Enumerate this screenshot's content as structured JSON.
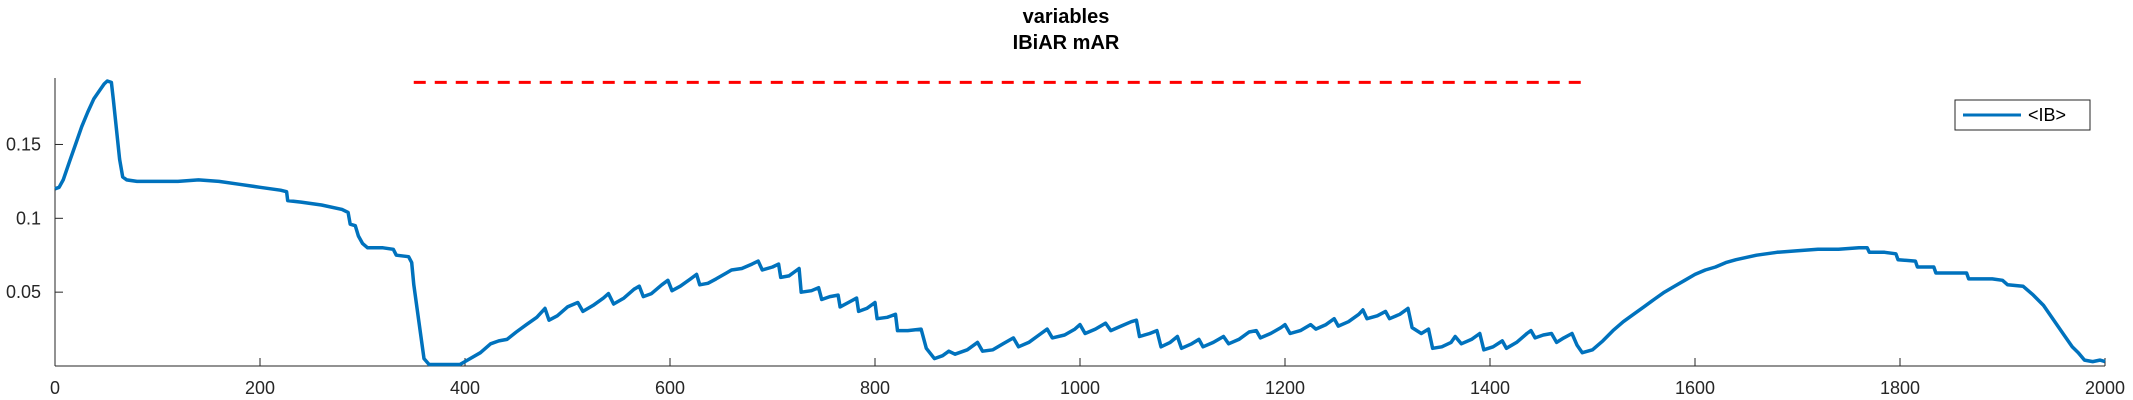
{
  "chart_data": {
    "type": "line",
    "title_lines": [
      "variables",
      "IBiAR mAR"
    ],
    "xlabel": "",
    "ylabel": "",
    "xlim": [
      0,
      2000
    ],
    "ylim": [
      0,
      0.195
    ],
    "x_ticks": [
      0,
      200,
      400,
      600,
      800,
      1000,
      1200,
      1400,
      1600,
      1800,
      2000
    ],
    "y_ticks": [
      0.05,
      0.1,
      0.15
    ],
    "y_tick_labels": [
      "0.05",
      "0.1",
      "0.15"
    ],
    "grid": false,
    "legend_position": "top-right",
    "series": [
      {
        "name": "<IB>",
        "color": "#0072BD",
        "points": [
          [
            0,
            0.12
          ],
          [
            4,
            0.121
          ],
          [
            8,
            0.126
          ],
          [
            14,
            0.138
          ],
          [
            20,
            0.15
          ],
          [
            26,
            0.162
          ],
          [
            32,
            0.172
          ],
          [
            38,
            0.181
          ],
          [
            44,
            0.187
          ],
          [
            48,
            0.191
          ],
          [
            51,
            0.193
          ],
          [
            55,
            0.192
          ],
          [
            57,
            0.18
          ],
          [
            60,
            0.16
          ],
          [
            63,
            0.14
          ],
          [
            66,
            0.128
          ],
          [
            70,
            0.126
          ],
          [
            80,
            0.125
          ],
          [
            100,
            0.125
          ],
          [
            120,
            0.125
          ],
          [
            140,
            0.126
          ],
          [
            160,
            0.125
          ],
          [
            180,
            0.123
          ],
          [
            200,
            0.121
          ],
          [
            220,
            0.119
          ],
          [
            226,
            0.118
          ],
          [
            227,
            0.112
          ],
          [
            240,
            0.111
          ],
          [
            260,
            0.109
          ],
          [
            280,
            0.106
          ],
          [
            286,
            0.104
          ],
          [
            288,
            0.096
          ],
          [
            293,
            0.095
          ],
          [
            296,
            0.088
          ],
          [
            300,
            0.083
          ],
          [
            305,
            0.08
          ],
          [
            320,
            0.08
          ],
          [
            330,
            0.079
          ],
          [
            333,
            0.075
          ],
          [
            345,
            0.074
          ],
          [
            348,
            0.07
          ],
          [
            350,
            0.055
          ],
          [
            355,
            0.03
          ],
          [
            360,
            0.005
          ],
          [
            365,
            0.001
          ],
          [
            380,
            0.001
          ],
          [
            395,
            0.001
          ],
          [
            405,
            0.005
          ],
          [
            415,
            0.009
          ],
          [
            425,
            0.015
          ],
          [
            433,
            0.017
          ],
          [
            441,
            0.018
          ],
          [
            450,
            0.023
          ],
          [
            460,
            0.028
          ],
          [
            470,
            0.033
          ],
          [
            478,
            0.039
          ],
          [
            482,
            0.031
          ],
          [
            490,
            0.034
          ],
          [
            500,
            0.04
          ],
          [
            510,
            0.043
          ],
          [
            515,
            0.037
          ],
          [
            525,
            0.041
          ],
          [
            535,
            0.046
          ],
          [
            540,
            0.049
          ],
          [
            545,
            0.042
          ],
          [
            555,
            0.046
          ],
          [
            565,
            0.052
          ],
          [
            570,
            0.054
          ],
          [
            574,
            0.047
          ],
          [
            582,
            0.049
          ],
          [
            592,
            0.055
          ],
          [
            598,
            0.058
          ],
          [
            602,
            0.051
          ],
          [
            610,
            0.054
          ],
          [
            620,
            0.059
          ],
          [
            626,
            0.062
          ],
          [
            629,
            0.055
          ],
          [
            637,
            0.056
          ],
          [
            645,
            0.059
          ],
          [
            655,
            0.063
          ],
          [
            660,
            0.065
          ],
          [
            670,
            0.066
          ],
          [
            680,
            0.069
          ],
          [
            686,
            0.071
          ],
          [
            690,
            0.065
          ],
          [
            700,
            0.067
          ],
          [
            706,
            0.069
          ],
          [
            708,
            0.06
          ],
          [
            716,
            0.061
          ],
          [
            722,
            0.064
          ],
          [
            726,
            0.066
          ],
          [
            728,
            0.05
          ],
          [
            738,
            0.051
          ],
          [
            745,
            0.053
          ],
          [
            748,
            0.045
          ],
          [
            756,
            0.047
          ],
          [
            764,
            0.048
          ],
          [
            766,
            0.04
          ],
          [
            774,
            0.043
          ],
          [
            782,
            0.046
          ],
          [
            784,
            0.037
          ],
          [
            792,
            0.039
          ],
          [
            800,
            0.043
          ],
          [
            802,
            0.032
          ],
          [
            812,
            0.033
          ],
          [
            820,
            0.035
          ],
          [
            822,
            0.024
          ],
          [
            832,
            0.024
          ],
          [
            845,
            0.025
          ],
          [
            850,
            0.012
          ],
          [
            858,
            0.005
          ],
          [
            866,
            0.007
          ],
          [
            872,
            0.01
          ],
          [
            878,
            0.008
          ],
          [
            890,
            0.011
          ],
          [
            900,
            0.016
          ],
          [
            905,
            0.01
          ],
          [
            915,
            0.011
          ],
          [
            925,
            0.015
          ],
          [
            935,
            0.019
          ],
          [
            940,
            0.013
          ],
          [
            950,
            0.016
          ],
          [
            960,
            0.021
          ],
          [
            968,
            0.025
          ],
          [
            973,
            0.019
          ],
          [
            985,
            0.021
          ],
          [
            995,
            0.025
          ],
          [
            1000,
            0.028
          ],
          [
            1005,
            0.022
          ],
          [
            1015,
            0.025
          ],
          [
            1025,
            0.029
          ],
          [
            1030,
            0.024
          ],
          [
            1040,
            0.027
          ],
          [
            1050,
            0.03
          ],
          [
            1055,
            0.031
          ],
          [
            1058,
            0.02
          ],
          [
            1068,
            0.022
          ],
          [
            1075,
            0.024
          ],
          [
            1079,
            0.013
          ],
          [
            1088,
            0.016
          ],
          [
            1095,
            0.02
          ],
          [
            1099,
            0.012
          ],
          [
            1109,
            0.015
          ],
          [
            1116,
            0.018
          ],
          [
            1120,
            0.013
          ],
          [
            1130,
            0.016
          ],
          [
            1140,
            0.02
          ],
          [
            1145,
            0.015
          ],
          [
            1155,
            0.018
          ],
          [
            1165,
            0.023
          ],
          [
            1172,
            0.024
          ],
          [
            1176,
            0.019
          ],
          [
            1186,
            0.022
          ],
          [
            1196,
            0.026
          ],
          [
            1200,
            0.028
          ],
          [
            1205,
            0.022
          ],
          [
            1215,
            0.024
          ],
          [
            1225,
            0.028
          ],
          [
            1230,
            0.025
          ],
          [
            1240,
            0.028
          ],
          [
            1248,
            0.032
          ],
          [
            1252,
            0.027
          ],
          [
            1262,
            0.03
          ],
          [
            1272,
            0.035
          ],
          [
            1276,
            0.038
          ],
          [
            1280,
            0.032
          ],
          [
            1290,
            0.034
          ],
          [
            1298,
            0.037
          ],
          [
            1302,
            0.032
          ],
          [
            1312,
            0.035
          ],
          [
            1320,
            0.039
          ],
          [
            1324,
            0.026
          ],
          [
            1333,
            0.022
          ],
          [
            1340,
            0.025
          ],
          [
            1344,
            0.012
          ],
          [
            1353,
            0.013
          ],
          [
            1362,
            0.016
          ],
          [
            1366,
            0.02
          ],
          [
            1372,
            0.015
          ],
          [
            1382,
            0.018
          ],
          [
            1390,
            0.022
          ],
          [
            1394,
            0.011
          ],
          [
            1403,
            0.013
          ],
          [
            1412,
            0.017
          ],
          [
            1416,
            0.012
          ],
          [
            1426,
            0.016
          ],
          [
            1436,
            0.022
          ],
          [
            1440,
            0.024
          ],
          [
            1444,
            0.019
          ],
          [
            1452,
            0.021
          ],
          [
            1460,
            0.022
          ],
          [
            1465,
            0.016
          ],
          [
            1472,
            0.019
          ],
          [
            1480,
            0.022
          ],
          [
            1485,
            0.014
          ],
          [
            1490,
            0.009
          ],
          [
            1500,
            0.011
          ],
          [
            1510,
            0.017
          ],
          [
            1520,
            0.024
          ],
          [
            1530,
            0.03
          ],
          [
            1540,
            0.035
          ],
          [
            1550,
            0.04
          ],
          [
            1560,
            0.045
          ],
          [
            1570,
            0.05
          ],
          [
            1580,
            0.054
          ],
          [
            1590,
            0.058
          ],
          [
            1600,
            0.062
          ],
          [
            1610,
            0.065
          ],
          [
            1620,
            0.067
          ],
          [
            1630,
            0.07
          ],
          [
            1640,
            0.072
          ],
          [
            1660,
            0.075
          ],
          [
            1680,
            0.077
          ],
          [
            1700,
            0.078
          ],
          [
            1720,
            0.079
          ],
          [
            1740,
            0.079
          ],
          [
            1760,
            0.08
          ],
          [
            1768,
            0.08
          ],
          [
            1770,
            0.077
          ],
          [
            1785,
            0.077
          ],
          [
            1796,
            0.076
          ],
          [
            1798,
            0.072
          ],
          [
            1815,
            0.071
          ],
          [
            1817,
            0.067
          ],
          [
            1833,
            0.067
          ],
          [
            1835,
            0.063
          ],
          [
            1865,
            0.063
          ],
          [
            1867,
            0.059
          ],
          [
            1890,
            0.059
          ],
          [
            1900,
            0.058
          ],
          [
            1905,
            0.055
          ],
          [
            1920,
            0.054
          ],
          [
            1930,
            0.048
          ],
          [
            1940,
            0.041
          ],
          [
            1950,
            0.031
          ],
          [
            1960,
            0.021
          ],
          [
            1968,
            0.013
          ],
          [
            1974,
            0.009
          ],
          [
            1980,
            0.004
          ],
          [
            1988,
            0.003
          ],
          [
            1995,
            0.004
          ],
          [
            2000,
            0.003
          ]
        ]
      }
    ],
    "reference_lines": [
      {
        "style": "dashed",
        "color": "#FF0000",
        "y": 0.192,
        "x_start": 350,
        "x_end": 1490
      }
    ]
  }
}
